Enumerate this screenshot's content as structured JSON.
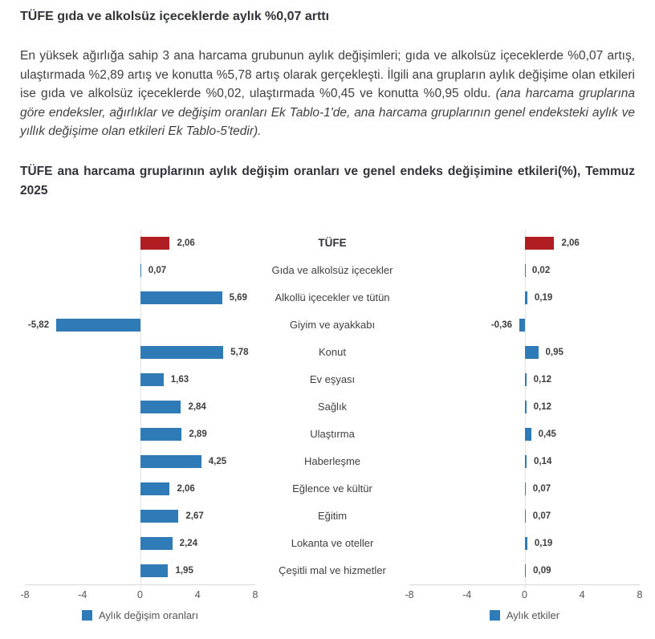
{
  "page": {
    "title": "TÜFE gıda ve alkolsüz içeceklerde aylık %0,07 arttı",
    "paragraph_main": "En yüksek ağırlığa sahip 3 ana harcama grubunun aylık değişimleri; gıda ve alkolsüz içeceklerde %0,07 artış, ulaştırmada %2,89 artış ve konutta %5,78 artış olarak gerçekleşti. İlgili ana grupların aylık değişime olan etkileri ise gıda ve alkolsüz içeceklerde %0,02, ulaştırmada %0,45 ve konutta %0,95 oldu. ",
    "paragraph_italic": "(ana harcama gruplarına göre endeksler, ağırlıklar ve değişim oranları Ek Tablo-1'de, ana harcama gruplarının genel endeksteki aylık ve yıllık değişime olan etkileri Ek Tablo-5'tedir).",
    "chart_title": "TÜFE ana harcama gruplarının aylık değişim oranları ve genel endeks değişimine etkileri(%), Temmuz 2025"
  },
  "chart_data": {
    "type": "bar",
    "orientation": "horizontal",
    "categories": [
      "TÜFE",
      "Gıda ve alkolsüz içecekler",
      "Alkollü içecekler ve tütün",
      "Giyim ve ayakkabı",
      "Konut",
      "Ev eşyası",
      "Sağlık",
      "Ulaştırma",
      "Haberleşme",
      "Eğlence ve kültür",
      "Eğitim",
      "Lokanta ve oteller",
      "Çeşitli mal ve hizmetler"
    ],
    "series": [
      {
        "name": "Aylık değişim oranları",
        "values": [
          2.06,
          0.07,
          5.69,
          -5.82,
          5.78,
          1.63,
          2.84,
          2.89,
          4.25,
          2.06,
          2.67,
          2.24,
          1.95
        ],
        "labels": [
          "2,06",
          "0,07",
          "5,69",
          "-5,82",
          "5,78",
          "1,63",
          "2,84",
          "2,89",
          "4,25",
          "2,06",
          "2,67",
          "2,24",
          "1,95"
        ]
      },
      {
        "name": "Aylık etkiler",
        "values": [
          2.06,
          0.02,
          0.19,
          -0.36,
          0.95,
          0.12,
          0.12,
          0.45,
          0.14,
          0.07,
          0.07,
          0.19,
          0.09
        ],
        "labels": [
          "2,06",
          "0,02",
          "0,19",
          "-0,36",
          "0,95",
          "0,12",
          "0,12",
          "0,45",
          "0,14",
          "0,07",
          "0,07",
          "0,19",
          "0,09"
        ]
      }
    ],
    "xlim": [
      -8,
      8
    ],
    "ticks": [
      "-8",
      "-4",
      "0",
      "4",
      "8"
    ],
    "grid": false,
    "legend_position": "bottom",
    "colors": {
      "default": "#2f7bb7",
      "highlight": "#b01e23",
      "highlight_index": 0
    }
  }
}
